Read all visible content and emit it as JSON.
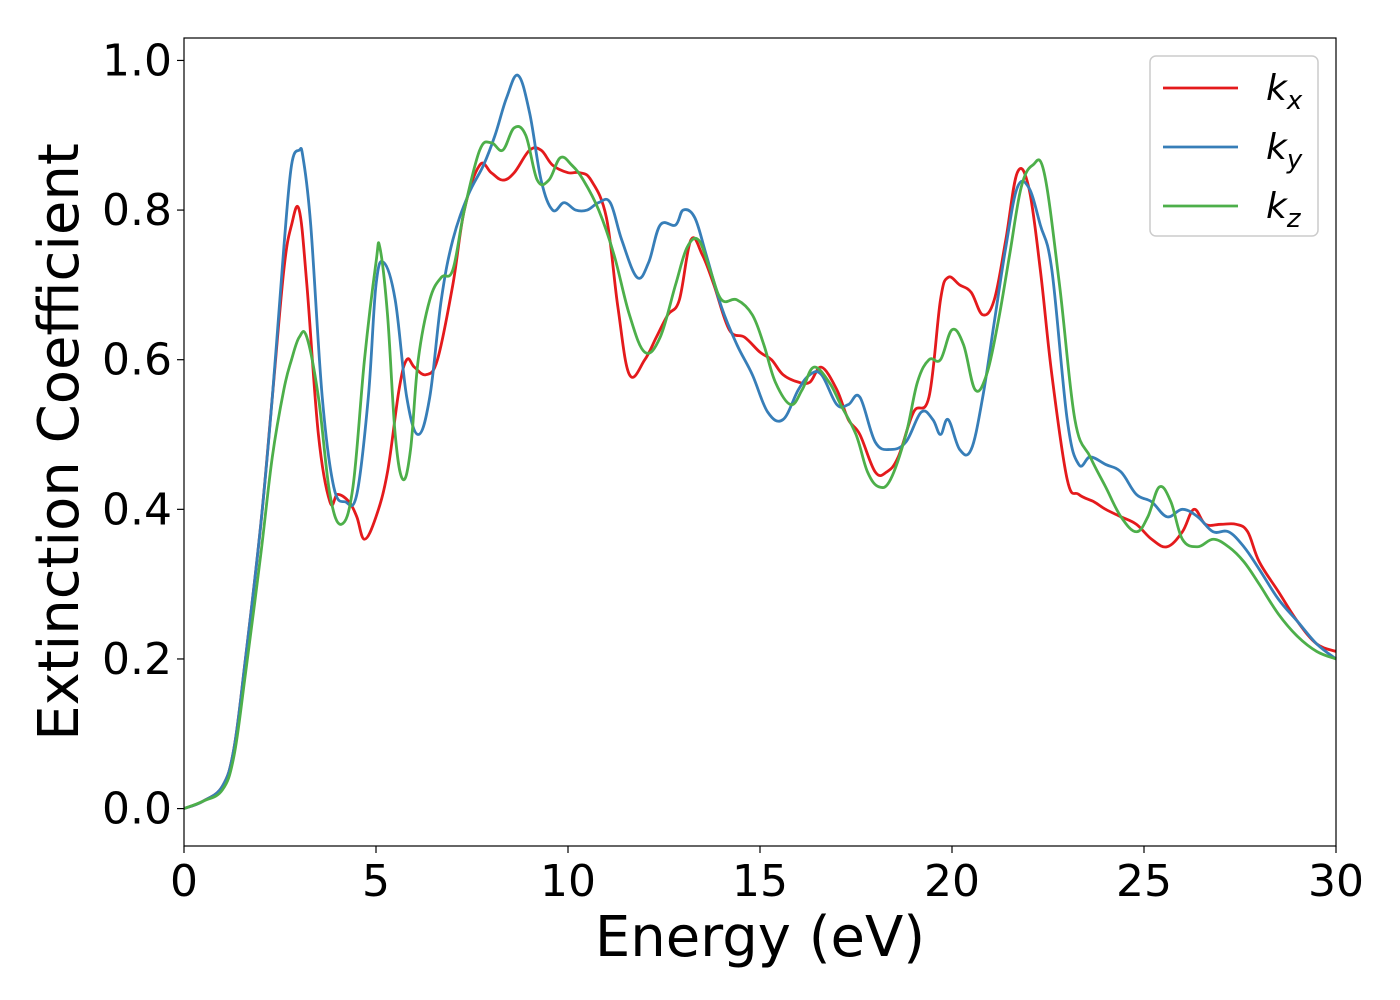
{
  "chart_data": {
    "type": "line",
    "xlabel": "Energy (eV)",
    "ylabel": "Extinction Coefficient",
    "xlim": [
      0,
      30
    ],
    "ylim": [
      -0.05,
      1.03
    ],
    "xticks": [
      0,
      5,
      10,
      15,
      20,
      25,
      30
    ],
    "yticks": [
      0.0,
      0.2,
      0.4,
      0.6,
      0.8,
      1.0
    ],
    "xtick_labels": [
      "0",
      "5",
      "10",
      "15",
      "20",
      "25",
      "30"
    ],
    "ytick_labels": [
      "0.0",
      "0.2",
      "0.4",
      "0.6",
      "0.8",
      "1.0"
    ],
    "grid": false,
    "legend_position": "top-right",
    "series": [
      {
        "name": "kx",
        "label_base": "k",
        "label_sub": "x",
        "color": "#e41a1c",
        "x": [
          0,
          0.5,
          1,
          1.3,
          1.6,
          2,
          2.3,
          2.6,
          2.8,
          3.0,
          3.2,
          3.5,
          3.8,
          4.0,
          4.3,
          4.5,
          4.7,
          5.0,
          5.3,
          5.6,
          5.8,
          6.0,
          6.3,
          6.6,
          7.0,
          7.3,
          7.7,
          8.0,
          8.3,
          8.6,
          9.0,
          9.3,
          9.6,
          10,
          10.3,
          10.6,
          11.0,
          11.3,
          11.6,
          12.0,
          12.3,
          12.6,
          12.9,
          13.2,
          13.5,
          13.8,
          14.2,
          14.6,
          15.0,
          15.3,
          15.6,
          16.0,
          16.3,
          16.6,
          17.0,
          17.3,
          17.6,
          18.0,
          18.3,
          18.6,
          19.0,
          19.4,
          19.7,
          19.9,
          20.2,
          20.5,
          20.8,
          21.1,
          21.4,
          21.7,
          22.0,
          22.3,
          22.6,
          23.0,
          23.3,
          23.7,
          24.0,
          24.4,
          24.8,
          25.2,
          25.6,
          26.0,
          26.3,
          26.6,
          27.0,
          27.4,
          27.7,
          28.0,
          28.5,
          29.0,
          29.5,
          30.0
        ],
        "y": [
          0.0,
          0.01,
          0.03,
          0.08,
          0.2,
          0.38,
          0.55,
          0.72,
          0.78,
          0.8,
          0.7,
          0.5,
          0.41,
          0.42,
          0.41,
          0.39,
          0.36,
          0.39,
          0.45,
          0.56,
          0.6,
          0.59,
          0.58,
          0.6,
          0.7,
          0.8,
          0.86,
          0.85,
          0.84,
          0.85,
          0.88,
          0.88,
          0.86,
          0.85,
          0.85,
          0.84,
          0.79,
          0.67,
          0.58,
          0.6,
          0.63,
          0.66,
          0.68,
          0.76,
          0.74,
          0.7,
          0.64,
          0.63,
          0.61,
          0.6,
          0.58,
          0.57,
          0.57,
          0.59,
          0.56,
          0.52,
          0.5,
          0.45,
          0.45,
          0.47,
          0.53,
          0.55,
          0.68,
          0.71,
          0.7,
          0.69,
          0.66,
          0.68,
          0.76,
          0.85,
          0.83,
          0.72,
          0.58,
          0.44,
          0.42,
          0.41,
          0.4,
          0.39,
          0.38,
          0.36,
          0.35,
          0.37,
          0.4,
          0.38,
          0.38,
          0.38,
          0.37,
          0.33,
          0.29,
          0.25,
          0.22,
          0.21
        ]
      },
      {
        "name": "ky",
        "label_base": "k",
        "label_sub": "y",
        "color": "#377eb8",
        "x": [
          0,
          0.5,
          1,
          1.3,
          1.6,
          2,
          2.3,
          2.6,
          2.8,
          3.0,
          3.1,
          3.3,
          3.6,
          3.9,
          4.2,
          4.5,
          4.8,
          5.0,
          5.2,
          5.5,
          5.8,
          6.1,
          6.4,
          6.7,
          7.0,
          7.4,
          7.8,
          8.1,
          8.4,
          8.7,
          9.0,
          9.3,
          9.6,
          9.9,
          10.2,
          10.5,
          10.8,
          11.1,
          11.4,
          11.8,
          12.1,
          12.4,
          12.8,
          13.0,
          13.3,
          13.6,
          14.0,
          14.4,
          14.8,
          15.2,
          15.6,
          16.0,
          16.3,
          16.6,
          17.0,
          17.3,
          17.6,
          18.0,
          18.4,
          18.8,
          19.2,
          19.5,
          19.7,
          19.9,
          20.2,
          20.5,
          20.8,
          21.1,
          21.4,
          21.7,
          22.0,
          22.3,
          22.6,
          23.0,
          23.3,
          23.6,
          24.0,
          24.4,
          24.8,
          25.2,
          25.6,
          26.0,
          26.4,
          26.8,
          27.2,
          27.6,
          28.0,
          28.5,
          29.0,
          29.5,
          30.0
        ],
        "y": [
          0.0,
          0.01,
          0.03,
          0.08,
          0.2,
          0.38,
          0.55,
          0.75,
          0.86,
          0.88,
          0.87,
          0.78,
          0.55,
          0.43,
          0.41,
          0.42,
          0.55,
          0.7,
          0.73,
          0.68,
          0.55,
          0.5,
          0.55,
          0.68,
          0.76,
          0.82,
          0.86,
          0.9,
          0.95,
          0.98,
          0.93,
          0.84,
          0.8,
          0.81,
          0.8,
          0.8,
          0.81,
          0.81,
          0.76,
          0.71,
          0.73,
          0.78,
          0.78,
          0.8,
          0.79,
          0.74,
          0.67,
          0.62,
          0.58,
          0.53,
          0.52,
          0.56,
          0.58,
          0.58,
          0.54,
          0.54,
          0.55,
          0.49,
          0.48,
          0.49,
          0.53,
          0.52,
          0.5,
          0.52,
          0.48,
          0.48,
          0.55,
          0.65,
          0.75,
          0.83,
          0.83,
          0.78,
          0.72,
          0.52,
          0.46,
          0.47,
          0.46,
          0.45,
          0.42,
          0.41,
          0.39,
          0.4,
          0.39,
          0.37,
          0.37,
          0.35,
          0.32,
          0.28,
          0.25,
          0.22,
          0.2
        ]
      },
      {
        "name": "kz",
        "label_base": "k",
        "label_sub": "z",
        "color": "#4daf4a",
        "x": [
          0,
          0.5,
          1,
          1.3,
          1.6,
          2,
          2.3,
          2.6,
          2.8,
          3.0,
          3.2,
          3.5,
          3.8,
          4.1,
          4.4,
          4.7,
          5.0,
          5.1,
          5.3,
          5.5,
          5.7,
          5.9,
          6.1,
          6.4,
          6.7,
          7.0,
          7.3,
          7.7,
          8.0,
          8.3,
          8.6,
          8.9,
          9.2,
          9.5,
          9.8,
          10.1,
          10.4,
          10.8,
          11.2,
          11.6,
          12.0,
          12.4,
          12.8,
          13.1,
          13.4,
          13.7,
          14.0,
          14.4,
          14.8,
          15.1,
          15.4,
          15.8,
          16.1,
          16.4,
          16.8,
          17.1,
          17.5,
          17.8,
          18.1,
          18.4,
          18.8,
          19.1,
          19.4,
          19.7,
          20.0,
          20.3,
          20.6,
          20.9,
          21.2,
          21.5,
          21.8,
          22.1,
          22.4,
          22.8,
          23.2,
          23.6,
          24.0,
          24.4,
          24.8,
          25.1,
          25.4,
          25.7,
          26.0,
          26.4,
          26.8,
          27.2,
          27.6,
          28.0,
          28.5,
          29.0,
          29.5,
          30.0
        ],
        "y": [
          0.0,
          0.01,
          0.025,
          0.07,
          0.18,
          0.34,
          0.47,
          0.56,
          0.6,
          0.63,
          0.63,
          0.55,
          0.42,
          0.38,
          0.43,
          0.6,
          0.73,
          0.75,
          0.66,
          0.5,
          0.44,
          0.48,
          0.6,
          0.68,
          0.71,
          0.72,
          0.8,
          0.88,
          0.89,
          0.88,
          0.91,
          0.9,
          0.84,
          0.84,
          0.87,
          0.86,
          0.84,
          0.8,
          0.74,
          0.66,
          0.61,
          0.63,
          0.7,
          0.75,
          0.76,
          0.72,
          0.68,
          0.68,
          0.66,
          0.62,
          0.57,
          0.54,
          0.56,
          0.59,
          0.57,
          0.54,
          0.5,
          0.45,
          0.43,
          0.44,
          0.5,
          0.57,
          0.6,
          0.6,
          0.64,
          0.62,
          0.56,
          0.58,
          0.65,
          0.74,
          0.83,
          0.86,
          0.85,
          0.7,
          0.52,
          0.47,
          0.43,
          0.39,
          0.37,
          0.39,
          0.43,
          0.41,
          0.36,
          0.35,
          0.36,
          0.35,
          0.33,
          0.3,
          0.26,
          0.23,
          0.21,
          0.2
        ]
      }
    ]
  }
}
